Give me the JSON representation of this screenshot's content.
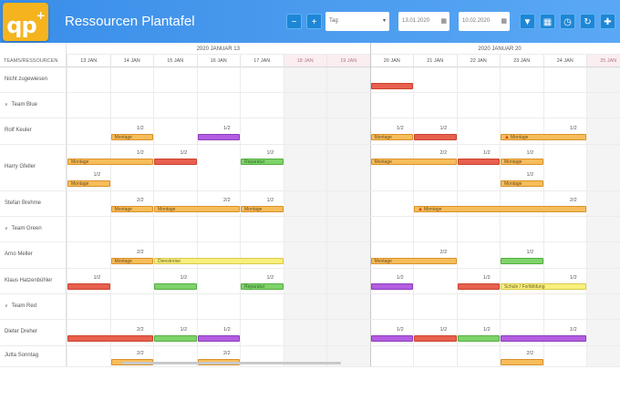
{
  "header": {
    "logo_text": "qp",
    "logo_sup": "+",
    "title": "Ressourcen Plantafel",
    "zoom_out_icon": "zoom-out-icon",
    "zoom_in_icon": "zoom-in-icon",
    "view_select": "Tag",
    "date_from": "13.01.2020",
    "date_to": "10.02.2020",
    "tool_icons": [
      "filter-icon",
      "calendar-icon",
      "clock-icon",
      "refresh-icon",
      "move-icon"
    ],
    "accent": "#1e86d6"
  },
  "grid": {
    "corner_label": "TEAMS/RESSOURCEN",
    "weeks": [
      "2020 JANUAR 13",
      "2020 JANUAR 20"
    ],
    "days": [
      "13 JAN",
      "14 JAN",
      "15 JAN",
      "16 JAN",
      "17 JAN",
      "18 JAN",
      "19 JAN",
      "20 JAN",
      "21 JAN",
      "22 JAN",
      "23 JAN",
      "24 JAN",
      "25 JAN"
    ],
    "weekend_days": [
      5,
      6,
      12
    ],
    "rows": [
      {
        "label": "Nicht zugewiesen",
        "type": "resource"
      },
      {
        "label": "Team Blue",
        "type": "team"
      },
      {
        "label": "Rolf Keuler",
        "type": "resource"
      },
      {
        "label": "Harry Gfeller",
        "type": "resource"
      },
      {
        "label": "Stefan Brehme",
        "type": "resource"
      },
      {
        "label": "Team Green",
        "type": "team"
      },
      {
        "label": "Arno Meller",
        "type": "resource"
      },
      {
        "label": "Klaus Hatzenbühler",
        "type": "resource"
      },
      {
        "label": "Team Red",
        "type": "team"
      },
      {
        "label": "Dieter Dreher",
        "type": "resource"
      },
      {
        "label": "Jutta Sonntag",
        "type": "resource"
      }
    ],
    "bars": [
      {
        "row": 0,
        "start": 7,
        "span": 1,
        "color": "red",
        "label": "",
        "frac": "",
        "lane": 0
      },
      {
        "row": 2,
        "start": 1,
        "span": 1,
        "color": "orange",
        "label": "Montage",
        "frac": "1/2",
        "lane": 0
      },
      {
        "row": 2,
        "start": 3,
        "span": 1,
        "color": "purple",
        "label": "",
        "frac": "1/2",
        "lane": 0
      },
      {
        "row": 2,
        "start": 7,
        "span": 1,
        "color": "orange",
        "label": "Montage",
        "frac": "1/2",
        "lane": 0
      },
      {
        "row": 2,
        "start": 8,
        "span": 1,
        "color": "red",
        "label": "",
        "frac": "1/2",
        "lane": 0
      },
      {
        "row": 2,
        "start": 10,
        "span": 2,
        "color": "orange",
        "label": "Montage",
        "frac": "1/2",
        "lane": 0,
        "warn": true
      },
      {
        "row": 3,
        "start": 0,
        "span": 2,
        "color": "orange",
        "label": "Montage",
        "frac": "1/2",
        "lane": 0
      },
      {
        "row": 3,
        "start": 2,
        "span": 1,
        "color": "red",
        "label": "",
        "frac": "1/2",
        "lane": 0
      },
      {
        "row": 3,
        "start": 4,
        "span": 1,
        "color": "green",
        "label": "Reparatur",
        "frac": "1/2",
        "lane": 0
      },
      {
        "row": 3,
        "start": 7,
        "span": 2,
        "color": "orange",
        "label": "Montage",
        "frac": "2/2",
        "lane": 0
      },
      {
        "row": 3,
        "start": 9,
        "span": 1,
        "color": "red",
        "label": "",
        "frac": "1/2",
        "lane": 0
      },
      {
        "row": 3,
        "start": 10,
        "span": 1,
        "color": "orange",
        "label": "Montage",
        "frac": "1/2",
        "lane": 0
      },
      {
        "row": 3,
        "start": 0,
        "span": 1,
        "color": "orange",
        "label": "Montage",
        "frac": "1/2",
        "lane": 1
      },
      {
        "row": 3,
        "start": 10,
        "span": 1,
        "color": "orange",
        "label": "Montage",
        "frac": "1/2",
        "lane": 1
      },
      {
        "row": 4,
        "start": 1,
        "span": 1,
        "color": "orange",
        "label": "Montage",
        "frac": "2/2",
        "lane": 0
      },
      {
        "row": 4,
        "start": 2,
        "span": 2,
        "color": "orange",
        "label": "Montage",
        "frac": "2/2",
        "lane": 0
      },
      {
        "row": 4,
        "start": 4,
        "span": 1,
        "color": "orange",
        "label": "Montage",
        "frac": "1/2",
        "lane": 0
      },
      {
        "row": 4,
        "start": 8,
        "span": 4,
        "color": "orange",
        "label": "Montage",
        "frac": "2/2",
        "lane": 0,
        "warn": true
      },
      {
        "row": 6,
        "start": 1,
        "span": 1,
        "color": "orange",
        "label": "Montage",
        "frac": "2/2",
        "lane": 0
      },
      {
        "row": 6,
        "start": 2,
        "span": 3,
        "color": "yellow",
        "label": "Dienstreise",
        "frac": "",
        "lane": 0
      },
      {
        "row": 6,
        "start": 7,
        "span": 2,
        "color": "orange",
        "label": "Montage",
        "frac": "2/2",
        "lane": 0
      },
      {
        "row": 6,
        "start": 10,
        "span": 1,
        "color": "green",
        "label": "",
        "frac": "1/2",
        "lane": 0
      },
      {
        "row": 7,
        "start": 0,
        "span": 1,
        "color": "red",
        "label": "",
        "frac": "1/2",
        "lane": 0
      },
      {
        "row": 7,
        "start": 2,
        "span": 1,
        "color": "green",
        "label": "",
        "frac": "1/2",
        "lane": 0
      },
      {
        "row": 7,
        "start": 4,
        "span": 1,
        "color": "green",
        "label": "Reparatur",
        "frac": "1/2",
        "lane": 0
      },
      {
        "row": 7,
        "start": 7,
        "span": 1,
        "color": "purple",
        "label": "",
        "frac": "1/2",
        "lane": 0
      },
      {
        "row": 7,
        "start": 9,
        "span": 1,
        "color": "red",
        "label": "",
        "frac": "1/2",
        "lane": 0
      },
      {
        "row": 7,
        "start": 10,
        "span": 2,
        "color": "yellow",
        "label": "Schule / Fortbildung",
        "frac": "1/2",
        "lane": 0
      },
      {
        "row": 9,
        "start": 0,
        "span": 2,
        "color": "red",
        "label": "",
        "frac": "2/2",
        "lane": 0
      },
      {
        "row": 9,
        "start": 2,
        "span": 1,
        "color": "green",
        "label": "",
        "frac": "1/2",
        "lane": 0
      },
      {
        "row": 9,
        "start": 3,
        "span": 1,
        "color": "purple",
        "label": "",
        "frac": "1/2",
        "lane": 0
      },
      {
        "row": 9,
        "start": 7,
        "span": 1,
        "color": "purple",
        "label": "",
        "frac": "1/2",
        "lane": 0
      },
      {
        "row": 9,
        "start": 8,
        "span": 1,
        "color": "red",
        "label": "",
        "frac": "1/2",
        "lane": 0
      },
      {
        "row": 9,
        "start": 9,
        "span": 1,
        "color": "green",
        "label": "",
        "frac": "1/2",
        "lane": 0
      },
      {
        "row": 9,
        "start": 10,
        "span": 2,
        "color": "purple",
        "label": "",
        "frac": "1/2",
        "lane": 0
      },
      {
        "row": 10,
        "start": 1,
        "span": 1,
        "color": "orange",
        "label": "",
        "frac": "2/2",
        "lane": 0
      },
      {
        "row": 10,
        "start": 3,
        "span": 1,
        "color": "orange",
        "label": "",
        "frac": "2/2",
        "lane": 0
      },
      {
        "row": 10,
        "start": 10,
        "span": 1,
        "color": "orange",
        "label": "",
        "frac": "2/2",
        "lane": 0
      }
    ]
  }
}
